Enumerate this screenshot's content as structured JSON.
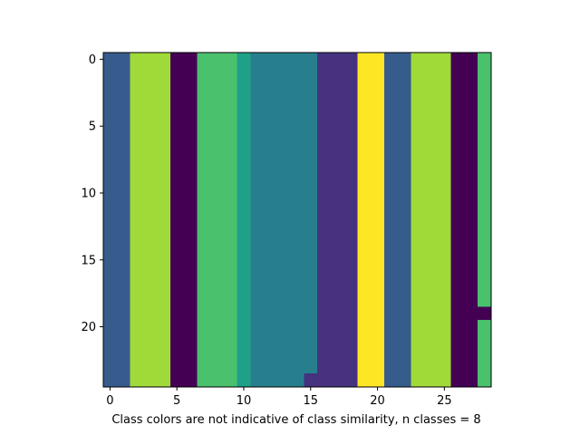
{
  "chart_data": {
    "type": "heatmap",
    "xlabel": "Class colors are not indicative of class similarity, n classes = 8",
    "ylabel": "",
    "title": "",
    "n_classes": 8,
    "colormap": "viridis",
    "xlim": [
      -0.5,
      28.5
    ],
    "ylim": [
      24.5,
      -0.5
    ],
    "xticks": [
      0,
      5,
      10,
      15,
      20,
      25
    ],
    "yticks": [
      0,
      5,
      10,
      15,
      20
    ],
    "grid": false,
    "n_rows": 25,
    "n_cols": 29,
    "class_colors": [
      "#440154",
      "#46327e",
      "#365c8d",
      "#277f8e",
      "#1fa187",
      "#4ac16d",
      "#a0da39",
      "#fde725"
    ],
    "column_classes": [
      2,
      2,
      6,
      6,
      6,
      0,
      0,
      5,
      5,
      5,
      4,
      3,
      3,
      3,
      3,
      3,
      1,
      1,
      1,
      7,
      7,
      2,
      2,
      6,
      6,
      6,
      0,
      0,
      5
    ],
    "exceptions": [
      {
        "row": 24,
        "col": 15,
        "class": 1
      },
      {
        "row": 19,
        "col": 28,
        "class": 0
      }
    ]
  }
}
